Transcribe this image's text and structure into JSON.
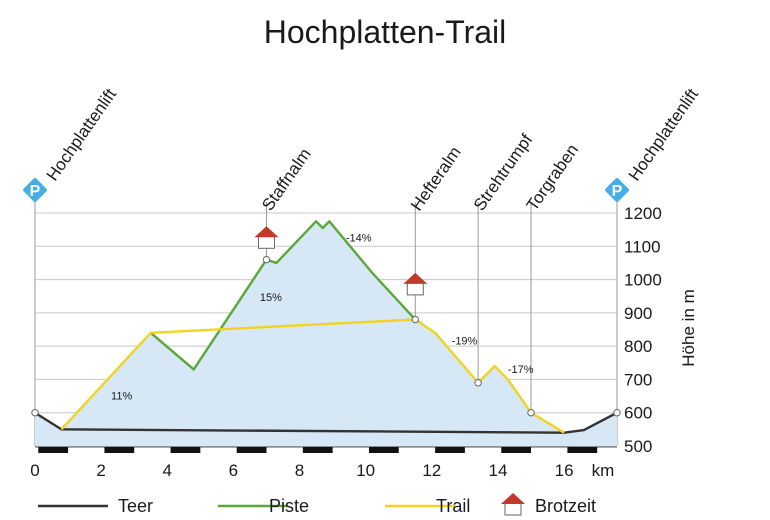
{
  "chart_data": {
    "type": "area",
    "title": "Hochplatten-Trail",
    "xlabel": "",
    "x_unit": "km",
    "ylabel": "Höhe in m",
    "xlim": [
      0,
      17.6
    ],
    "ylim": [
      500,
      1200
    ],
    "x_ticks": [
      0,
      2,
      4,
      6,
      8,
      10,
      12,
      14,
      16
    ],
    "y_ticks": [
      500,
      600,
      700,
      800,
      900,
      1000,
      1100,
      1200
    ],
    "grid": true,
    "legend_position": "bottom",
    "colors": {
      "fill": "#d6e8f5",
      "grid": "#c8c8c8",
      "Teer": "#333333",
      "Piste": "#5aa83a",
      "Trail": "#f2d321",
      "hut_roof": "#c0392b",
      "parking": "#45aee4"
    },
    "series": [
      {
        "name": "Teer",
        "points": [
          [
            0,
            600
          ],
          [
            0.8,
            550
          ],
          [
            16.0,
            540
          ],
          [
            16.6,
            548
          ],
          [
            17.6,
            600
          ]
        ]
      },
      {
        "name": "Piste",
        "points": [
          [
            3.5,
            840
          ],
          [
            4.8,
            730
          ],
          [
            7.0,
            1060
          ],
          [
            7.3,
            1050
          ],
          [
            8.5,
            1175
          ],
          [
            8.7,
            1155
          ],
          [
            8.9,
            1175
          ],
          [
            10.2,
            1020
          ],
          [
            11.5,
            880
          ]
        ]
      },
      {
        "name": "Trail",
        "points": [
          [
            0.8,
            550
          ],
          [
            3.5,
            840
          ],
          [
            11.5,
            880
          ],
          [
            12.1,
            840
          ],
          [
            13.4,
            690
          ],
          [
            13.9,
            740
          ],
          [
            14.3,
            700
          ],
          [
            15.0,
            600
          ],
          [
            16.0,
            540
          ]
        ]
      }
    ],
    "open_points": [
      [
        0,
        600
      ],
      [
        7.0,
        1060
      ],
      [
        11.5,
        880
      ],
      [
        13.4,
        690
      ],
      [
        15.0,
        600
      ],
      [
        17.6,
        600
      ]
    ],
    "grade_labels": [
      {
        "text": "11%",
        "x": 2.3,
        "y": 640
      },
      {
        "text": "15%",
        "x": 6.8,
        "y": 935
      },
      {
        "text": "-14%",
        "x": 9.4,
        "y": 1115
      },
      {
        "text": "-19%",
        "x": 12.6,
        "y": 805
      },
      {
        "text": "-17%",
        "x": 14.3,
        "y": 720
      }
    ],
    "waypoints": [
      {
        "name": "Hochplattenlift",
        "x": 0,
        "parking": true,
        "hut": false
      },
      {
        "name": "Staffnalm",
        "x": 7.0,
        "parking": false,
        "hut": true,
        "hut_y": 1130
      },
      {
        "name": "Hefteralm",
        "x": 11.5,
        "parking": false,
        "hut": true,
        "hut_y": 990
      },
      {
        "name": "Strehtrumpf",
        "x": 13.4,
        "parking": false,
        "hut": false
      },
      {
        "name": "Torgraben",
        "x": 15.0,
        "parking": false,
        "hut": false
      },
      {
        "name": "Hochplattenlift",
        "x": 17.6,
        "parking": true,
        "hut": false
      }
    ],
    "parking_symbol": "P",
    "legend": [
      {
        "name": "Teer",
        "kind": "line",
        "color": "#333333"
      },
      {
        "name": "Piste",
        "kind": "line",
        "color": "#5aa83a"
      },
      {
        "name": "Trail",
        "kind": "line",
        "color": "#f2d321"
      },
      {
        "name": "Brotzeit",
        "kind": "hut",
        "color": "#c0392b"
      }
    ]
  }
}
